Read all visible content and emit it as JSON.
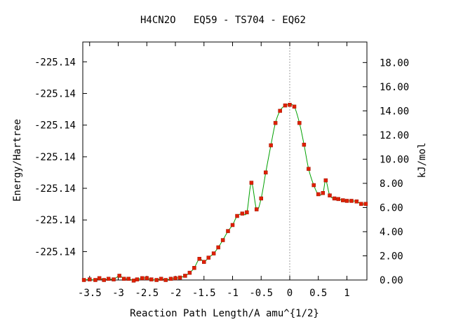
{
  "chart_data": {
    "type": "line",
    "title": "H4CN2O   EQ59 - TS704 - EQ62",
    "xlabel": "Reaction Path Length/A amu^{1/2}",
    "ylabel_left": "Energy/Hartree",
    "ylabel_right": "kJ/mol",
    "xlim": [
      -3.62,
      1.35
    ],
    "ylim_right": [
      0,
      19.7
    ],
    "x_ticks": [
      {
        "v": -3.5,
        "label": "-3.5"
      },
      {
        "v": -3,
        "label": "-3"
      },
      {
        "v": -2.5,
        "label": "-2.5"
      },
      {
        "v": -2,
        "label": "-2"
      },
      {
        "v": -1.5,
        "label": "-1.5"
      },
      {
        "v": -1,
        "label": "-1"
      },
      {
        "v": -0.5,
        "label": "-0.5"
      },
      {
        "v": 0,
        "label": "0"
      },
      {
        "v": 0.5,
        "label": "0.5"
      },
      {
        "v": 1,
        "label": "1"
      }
    ],
    "right_ticks": [
      {
        "v": 0,
        "label": "0.00"
      },
      {
        "v": 2,
        "label": "2.00"
      },
      {
        "v": 4,
        "label": "4.00"
      },
      {
        "v": 6,
        "label": "6.00"
      },
      {
        "v": 8,
        "label": "8.00"
      },
      {
        "v": 10,
        "label": "10.00"
      },
      {
        "v": 12,
        "label": "12.00"
      },
      {
        "v": 14,
        "label": "14.00"
      },
      {
        "v": 16,
        "label": "16.00"
      },
      {
        "v": 18,
        "label": "18.00"
      }
    ],
    "left_ticks": [
      {
        "v": 2.35,
        "label": "-225.14"
      },
      {
        "v": 4.97,
        "label": "-225.14"
      },
      {
        "v": 7.59,
        "label": "-225.14"
      },
      {
        "v": 10.2,
        "label": "-225.14"
      },
      {
        "v": 12.82,
        "label": "-225.14"
      },
      {
        "v": 15.44,
        "label": "-225.14"
      },
      {
        "v": 18.06,
        "label": "-225.14"
      }
    ],
    "ts_x": 0,
    "colors": {
      "line": "#00a000",
      "marker": "#e02000",
      "ts_line": "#a0a0a0"
    },
    "series": [
      {
        "values_unit": "kJ/mol",
        "points": [
          [
            -3.6,
            0.0
          ],
          [
            -3.5,
            0.05
          ],
          [
            -3.4,
            0.0
          ],
          [
            -3.33,
            0.15
          ],
          [
            -3.25,
            0.0
          ],
          [
            -3.17,
            0.1
          ],
          [
            -3.08,
            0.05
          ],
          [
            -2.98,
            0.35
          ],
          [
            -2.9,
            0.1
          ],
          [
            -2.82,
            0.1
          ],
          [
            -2.73,
            -0.05
          ],
          [
            -2.67,
            0.05
          ],
          [
            -2.58,
            0.15
          ],
          [
            -2.5,
            0.15
          ],
          [
            -2.42,
            0.05
          ],
          [
            -2.33,
            0.0
          ],
          [
            -2.25,
            0.1
          ],
          [
            -2.17,
            0.0
          ],
          [
            -2.08,
            0.1
          ],
          [
            -2.0,
            0.15
          ],
          [
            -1.92,
            0.2
          ],
          [
            -1.83,
            0.35
          ],
          [
            -1.75,
            0.6
          ],
          [
            -1.67,
            1.0
          ],
          [
            -1.58,
            1.75
          ],
          [
            -1.5,
            1.5
          ],
          [
            -1.42,
            1.85
          ],
          [
            -1.33,
            2.2
          ],
          [
            -1.25,
            2.7
          ],
          [
            -1.17,
            3.3
          ],
          [
            -1.08,
            4.05
          ],
          [
            -1.0,
            4.55
          ],
          [
            -0.92,
            5.3
          ],
          [
            -0.83,
            5.5
          ],
          [
            -0.75,
            5.6
          ],
          [
            -0.67,
            8.05
          ],
          [
            -0.58,
            5.85
          ],
          [
            -0.5,
            6.75
          ],
          [
            -0.42,
            8.9
          ],
          [
            -0.33,
            11.15
          ],
          [
            -0.25,
            13.0
          ],
          [
            -0.17,
            14.0
          ],
          [
            -0.08,
            14.45
          ],
          [
            0.0,
            14.5
          ],
          [
            0.08,
            14.35
          ],
          [
            0.17,
            13.0
          ],
          [
            0.25,
            11.2
          ],
          [
            0.33,
            9.2
          ],
          [
            0.42,
            7.85
          ],
          [
            0.5,
            7.1
          ],
          [
            0.58,
            7.2
          ],
          [
            0.63,
            8.25
          ],
          [
            0.7,
            7.0
          ],
          [
            0.78,
            6.75
          ],
          [
            0.85,
            6.7
          ],
          [
            0.93,
            6.6
          ],
          [
            1.0,
            6.55
          ],
          [
            1.08,
            6.55
          ],
          [
            1.17,
            6.5
          ],
          [
            1.25,
            6.3
          ],
          [
            1.33,
            6.3
          ]
        ]
      }
    ]
  }
}
